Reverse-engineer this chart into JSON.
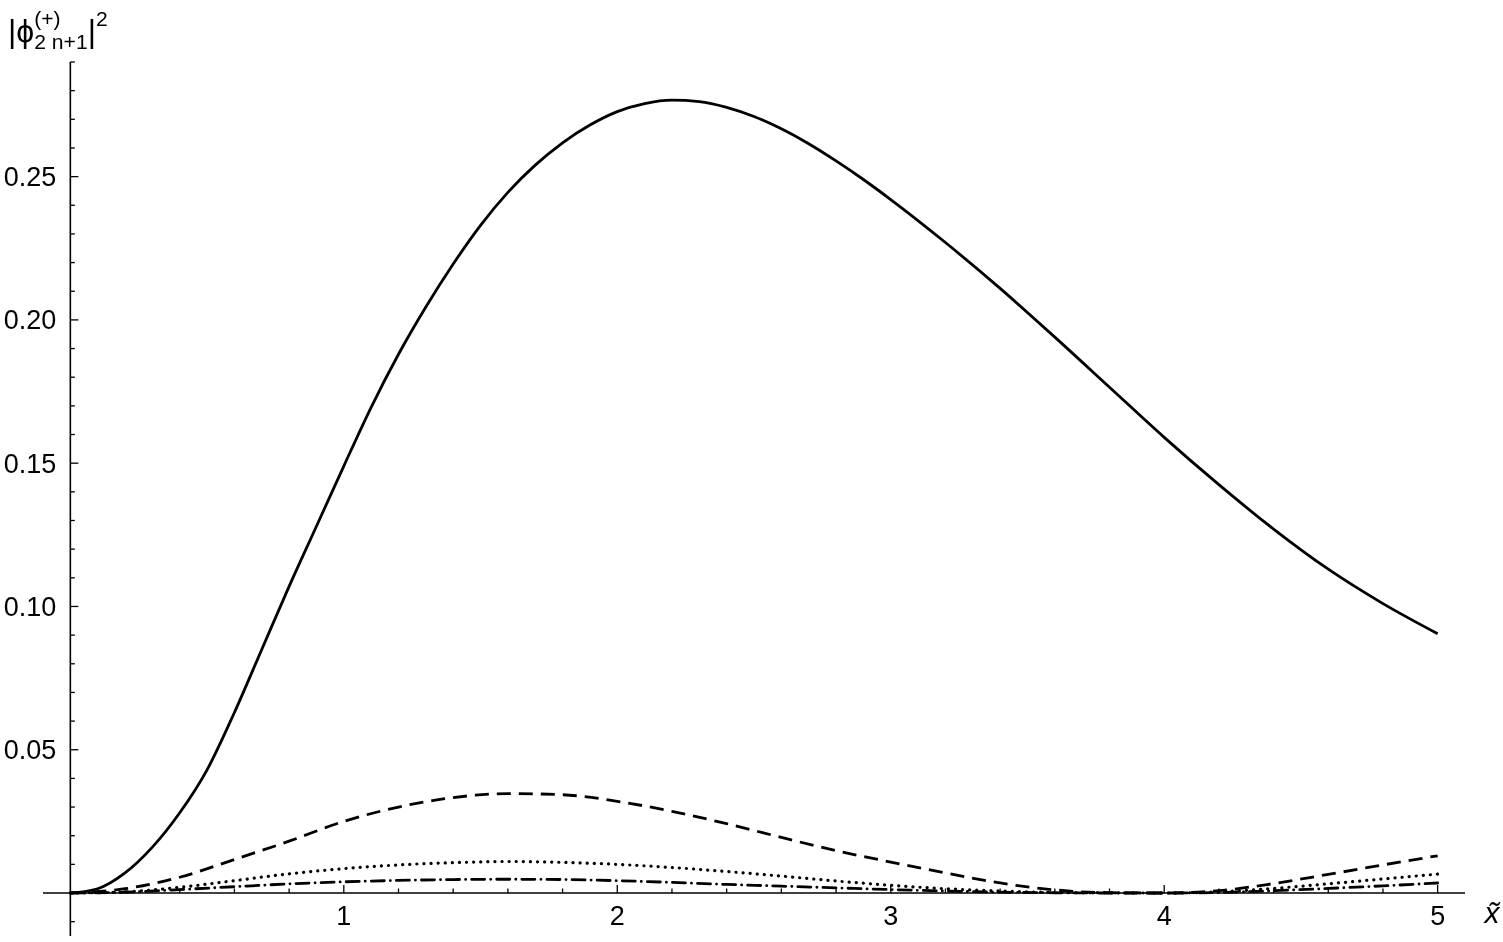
{
  "chart_data": {
    "type": "line",
    "ylabel": "|ϕ$^{(+)}$$_{2 n+1}$|$^{2}$",
    "xlabel": "x̃",
    "xlim": [
      -0.1,
      5.1
    ],
    "ylim": [
      -0.015,
      0.29
    ],
    "xticks": [
      {
        "value": 0.2,
        "label": null
      },
      {
        "value": 0.4,
        "label": null
      },
      {
        "value": 0.6,
        "label": null
      },
      {
        "value": 0.8,
        "label": null
      },
      1,
      {
        "value": 1.2,
        "label": null
      },
      {
        "value": 1.4,
        "label": null
      },
      {
        "value": 1.6,
        "label": null
      },
      {
        "value": 1.8,
        "label": null
      },
      2,
      {
        "value": 2.2,
        "label": null
      },
      {
        "value": 2.4,
        "label": null
      },
      {
        "value": 2.6,
        "label": null
      },
      {
        "value": 2.8,
        "label": null
      },
      3,
      {
        "value": 3.2,
        "label": null
      },
      {
        "value": 3.4,
        "label": null
      },
      {
        "value": 3.6,
        "label": null
      },
      {
        "value": 3.8,
        "label": null
      },
      4,
      {
        "value": 4.2,
        "label": null
      },
      {
        "value": 4.4,
        "label": null
      },
      {
        "value": 4.6,
        "label": null
      },
      {
        "value": 4.8,
        "label": null
      },
      5
    ],
    "yticks": [
      {
        "value": -0.01,
        "label": null
      },
      {
        "value": 0.01,
        "label": null
      },
      {
        "value": 0.02,
        "label": null
      },
      {
        "value": 0.03,
        "label": null
      },
      {
        "value": 0.04,
        "label": null
      },
      0.05,
      {
        "value": 0.06,
        "label": null
      },
      {
        "value": 0.07,
        "label": null
      },
      {
        "value": 0.08,
        "label": null
      },
      {
        "value": 0.09,
        "label": null
      },
      {
        "value": 0.1,
        "label": "0.10"
      },
      {
        "value": 0.11,
        "label": null
      },
      {
        "value": 0.12,
        "label": null
      },
      {
        "value": 0.13,
        "label": null
      },
      {
        "value": 0.14,
        "label": null
      },
      0.15,
      {
        "value": 0.16,
        "label": null
      },
      {
        "value": 0.17,
        "label": null
      },
      {
        "value": 0.18,
        "label": null
      },
      {
        "value": 0.19,
        "label": null
      },
      {
        "value": 0.2,
        "label": "0.20"
      },
      {
        "value": 0.21,
        "label": null
      },
      {
        "value": 0.22,
        "label": null
      },
      {
        "value": 0.23,
        "label": null
      },
      {
        "value": 0.24,
        "label": null
      },
      0.25,
      {
        "value": 0.26,
        "label": null
      },
      {
        "value": 0.27,
        "label": null
      },
      {
        "value": 0.28,
        "label": null
      },
      {
        "value": 0.29,
        "label": null
      }
    ],
    "x": [
      0,
      0.2,
      0.4,
      0.6,
      0.8,
      1.0,
      1.2,
      1.4,
      1.6,
      1.8,
      2.0,
      2.2,
      2.4,
      2.6,
      2.8,
      3.0,
      3.2,
      3.4,
      3.6,
      3.8,
      4.0,
      4.2,
      4.4,
      4.6,
      4.8,
      5.0
    ],
    "series": [
      {
        "color": "#000000",
        "line_style": "solid",
        "x": [
          0,
          0.1,
          0.2,
          0.3,
          0.4,
          0.5,
          0.6,
          0.7,
          0.8,
          0.9,
          1.0,
          1.1,
          1.2,
          1.3,
          1.4,
          1.5,
          1.6,
          1.7,
          1.8,
          1.9,
          2.0,
          2.1,
          2.2,
          2.3,
          2.4,
          2.5,
          2.6,
          2.7,
          2.8,
          2.9,
          3.0,
          3.2,
          3.4,
          3.6,
          3.8,
          4.0,
          4.2,
          4.4,
          4.6,
          4.8,
          5.0
        ],
        "values": [
          0,
          0.0015,
          0.007,
          0.016,
          0.028,
          0.043,
          0.063,
          0.085,
          0.107,
          0.128,
          0.149,
          0.1695,
          0.188,
          0.2045,
          0.2195,
          0.233,
          0.2445,
          0.254,
          0.2618,
          0.268,
          0.2727,
          0.2755,
          0.2767,
          0.2762,
          0.2742,
          0.271,
          0.2667,
          0.2615,
          0.2555,
          0.249,
          0.242,
          0.227,
          0.211,
          0.194,
          0.1765,
          0.159,
          0.1425,
          0.127,
          0.113,
          0.101,
          0.0905
        ]
      },
      {
        "color": "#000000",
        "line_style": "dashed",
        "values": [
          0,
          0.0015,
          0.0055,
          0.0117,
          0.0181,
          0.025,
          0.03,
          0.0333,
          0.0347,
          0.0343,
          0.032,
          0.0285,
          0.0242,
          0.0194,
          0.0148,
          0.0108,
          0.007,
          0.0035,
          0.0011,
          0.0001,
          0,
          0.0008,
          0.0033,
          0.0065,
          0.0098,
          0.013
        ]
      },
      {
        "color": "#000000",
        "line_style": "dotted",
        "values": [
          0,
          0.0004,
          0.002,
          0.0043,
          0.0067,
          0.0085,
          0.0098,
          0.0106,
          0.011,
          0.0107,
          0.01,
          0.0089,
          0.0075,
          0.0059,
          0.0042,
          0.0027,
          0.0015,
          0.0007,
          0.0002,
          0.0001,
          0,
          0.0004,
          0.0016,
          0.0032,
          0.0049,
          0.0066
        ]
      },
      {
        "color": "#000000",
        "line_style": "dashdot",
        "values": [
          0,
          0.0003,
          0.0012,
          0.0022,
          0.0032,
          0.0039,
          0.0044,
          0.0047,
          0.0048,
          0.0047,
          0.0043,
          0.0037,
          0.003,
          0.0024,
          0.0018,
          0.0012,
          0.0007,
          0.0003,
          0.0001,
          0,
          0,
          0.0002,
          0.0008,
          0.0016,
          0.0025,
          0.0035
        ]
      }
    ]
  }
}
